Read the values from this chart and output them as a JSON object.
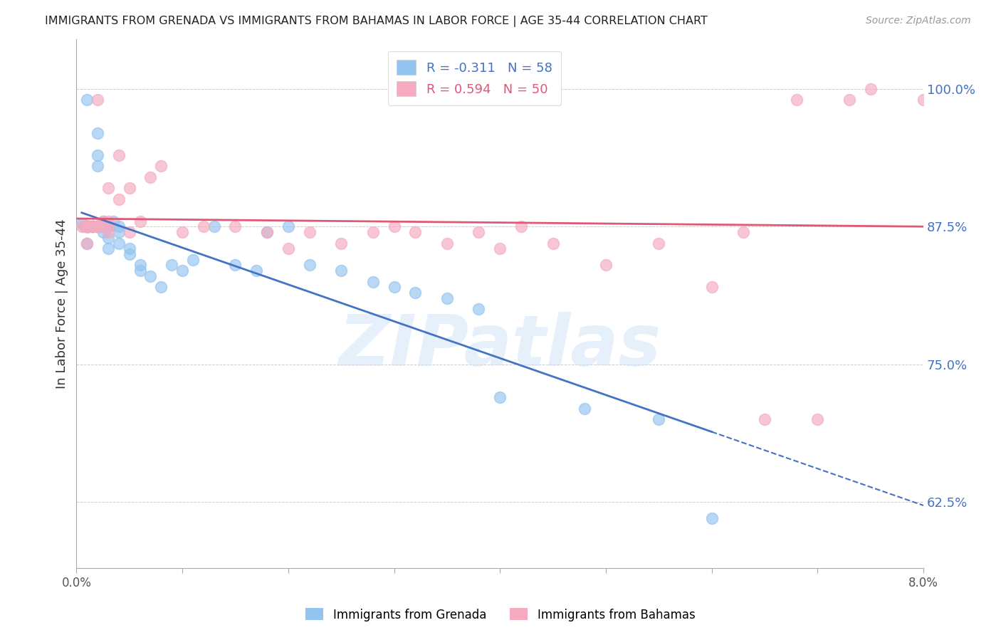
{
  "title": "IMMIGRANTS FROM GRENADA VS IMMIGRANTS FROM BAHAMAS IN LABOR FORCE | AGE 35-44 CORRELATION CHART",
  "source": "Source: ZipAtlas.com",
  "ylabel": "In Labor Force | Age 35-44",
  "yticks": [
    0.625,
    0.75,
    0.875,
    1.0
  ],
  "ytick_labels": [
    "62.5%",
    "75.0%",
    "87.5%",
    "100.0%"
  ],
  "xlim": [
    0.0,
    0.08
  ],
  "ylim": [
    0.565,
    1.045
  ],
  "grenada_color": "#93c4f0",
  "bahamas_color": "#f5aabf",
  "grenada_line_color": "#4472c4",
  "bahamas_line_color": "#e05878",
  "grenada_R": -0.311,
  "grenada_N": 58,
  "bahamas_R": 0.594,
  "bahamas_N": 50,
  "watermark": "ZIPatlas",
  "grenada_x": [
    0.0005,
    0.0008,
    0.001,
    0.001,
    0.001,
    0.001,
    0.001,
    0.001,
    0.0012,
    0.0012,
    0.0015,
    0.0015,
    0.0015,
    0.002,
    0.002,
    0.002,
    0.002,
    0.002,
    0.002,
    0.002,
    0.0022,
    0.0025,
    0.0025,
    0.0025,
    0.003,
    0.003,
    0.003,
    0.003,
    0.003,
    0.0035,
    0.004,
    0.004,
    0.004,
    0.005,
    0.005,
    0.006,
    0.006,
    0.007,
    0.008,
    0.009,
    0.01,
    0.011,
    0.013,
    0.015,
    0.017,
    0.018,
    0.02,
    0.022,
    0.025,
    0.028,
    0.03,
    0.032,
    0.035,
    0.038,
    0.04,
    0.048,
    0.055,
    0.06
  ],
  "grenada_y": [
    0.878,
    0.875,
    0.99,
    0.875,
    0.875,
    0.875,
    0.875,
    0.86,
    0.875,
    0.875,
    0.875,
    0.875,
    0.875,
    0.875,
    0.875,
    0.875,
    0.875,
    0.93,
    0.94,
    0.96,
    0.875,
    0.88,
    0.87,
    0.875,
    0.875,
    0.875,
    0.875,
    0.865,
    0.855,
    0.88,
    0.875,
    0.87,
    0.86,
    0.855,
    0.85,
    0.84,
    0.835,
    0.83,
    0.82,
    0.84,
    0.835,
    0.845,
    0.875,
    0.84,
    0.835,
    0.87,
    0.875,
    0.84,
    0.835,
    0.825,
    0.82,
    0.815,
    0.81,
    0.8,
    0.72,
    0.71,
    0.7,
    0.61
  ],
  "bahamas_x": [
    0.0005,
    0.001,
    0.001,
    0.001,
    0.001,
    0.001,
    0.0012,
    0.0015,
    0.002,
    0.002,
    0.002,
    0.002,
    0.002,
    0.0025,
    0.003,
    0.003,
    0.003,
    0.003,
    0.004,
    0.004,
    0.005,
    0.005,
    0.006,
    0.007,
    0.008,
    0.01,
    0.012,
    0.015,
    0.018,
    0.02,
    0.022,
    0.025,
    0.028,
    0.03,
    0.032,
    0.035,
    0.038,
    0.04,
    0.042,
    0.045,
    0.05,
    0.055,
    0.06,
    0.063,
    0.065,
    0.068,
    0.07,
    0.073,
    0.075,
    0.08
  ],
  "bahamas_y": [
    0.875,
    0.875,
    0.875,
    0.875,
    0.875,
    0.86,
    0.875,
    0.875,
    0.875,
    0.875,
    0.875,
    0.875,
    0.99,
    0.88,
    0.875,
    0.87,
    0.88,
    0.91,
    0.9,
    0.94,
    0.87,
    0.91,
    0.88,
    0.92,
    0.93,
    0.87,
    0.875,
    0.875,
    0.87,
    0.855,
    0.87,
    0.86,
    0.87,
    0.875,
    0.87,
    0.86,
    0.87,
    0.855,
    0.875,
    0.86,
    0.84,
    0.86,
    0.82,
    0.87,
    0.7,
    0.99,
    0.7,
    0.99,
    1.0,
    0.99
  ]
}
